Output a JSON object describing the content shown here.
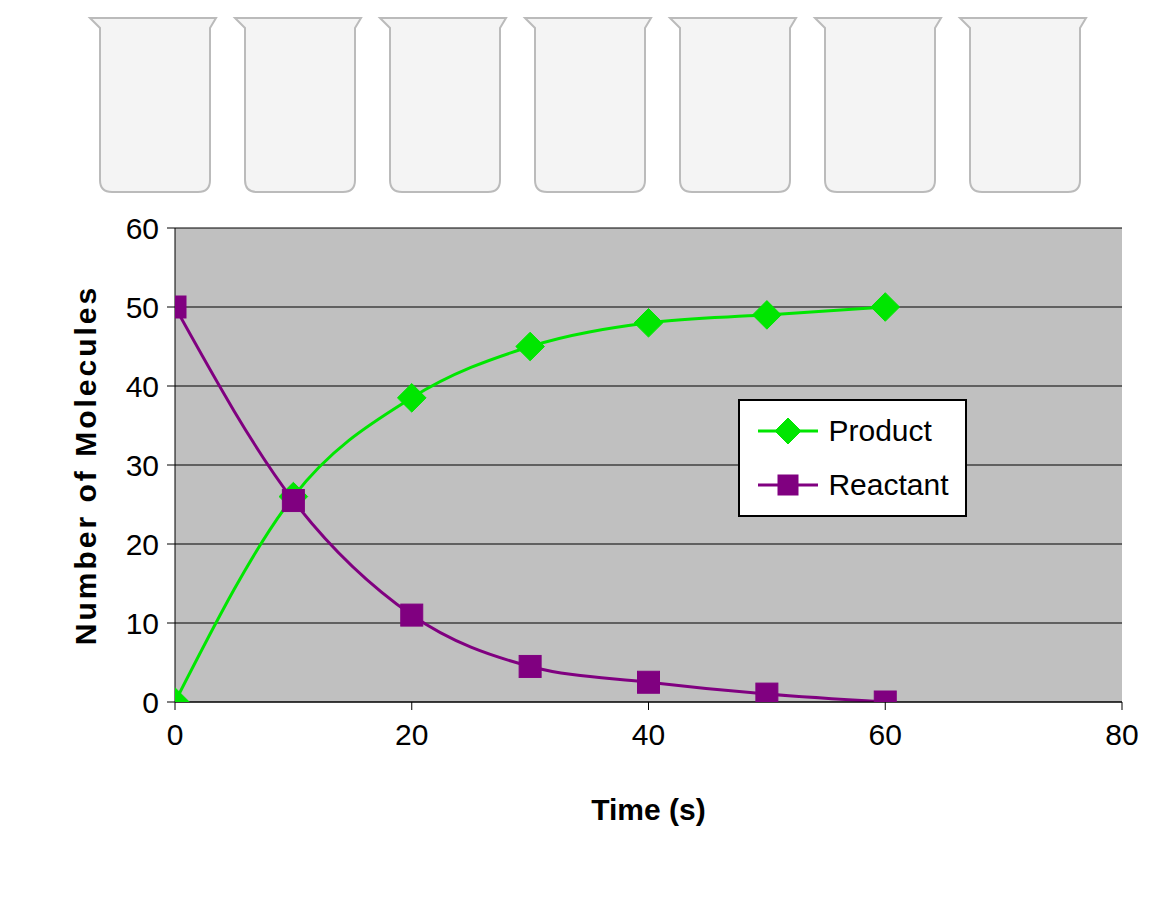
{
  "chart_data": {
    "type": "line",
    "x_label": "Time (s)",
    "y_label": "Number of Molecules",
    "x": [
      0,
      10,
      20,
      30,
      40,
      50,
      60
    ],
    "series": [
      {
        "name": "Product",
        "color": "#00e600",
        "marker": "diamond",
        "values": [
          0,
          26,
          38.5,
          45,
          48,
          49,
          50
        ]
      },
      {
        "name": "Reactant",
        "color": "#800080",
        "marker": "square",
        "values": [
          50,
          25.5,
          11,
          4.5,
          2.5,
          1,
          0
        ]
      }
    ],
    "xlim": [
      0,
      80
    ],
    "xticks": [
      0,
      20,
      40,
      60,
      80
    ],
    "ylim": [
      0,
      60
    ],
    "yticks": [
      0,
      10,
      20,
      30,
      40,
      50,
      60
    ],
    "grid": true,
    "legend": "right"
  }
}
